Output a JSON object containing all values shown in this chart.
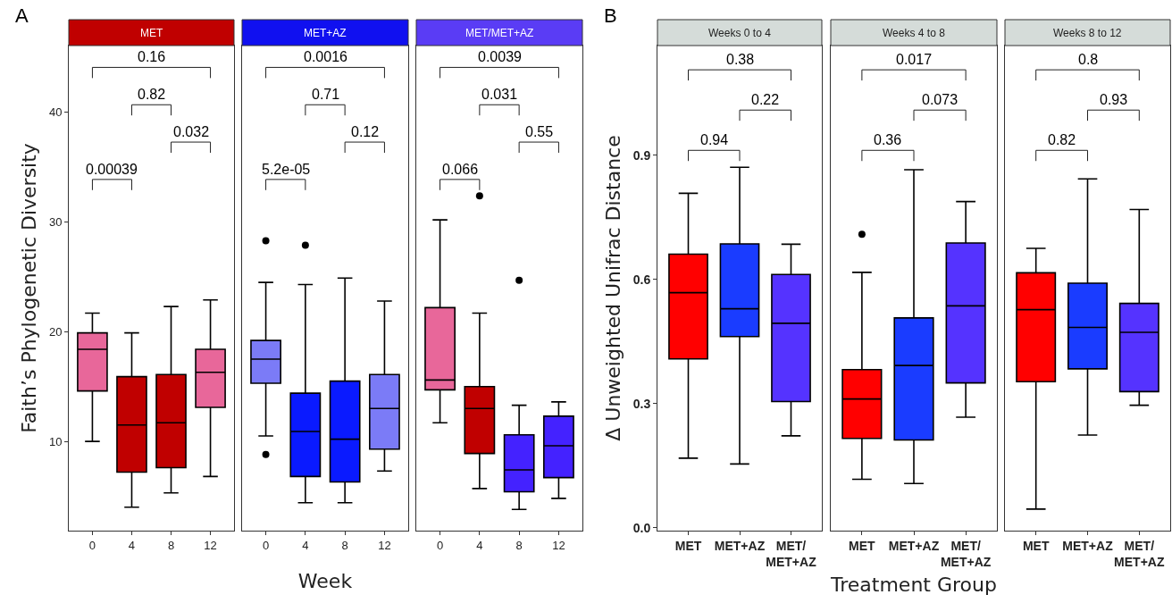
{
  "chart_data": [
    {
      "type": "box",
      "title": "MET",
      "subtitle": "A",
      "ylabel": "Faith’s Phylogenetic Diversity",
      "categories": [
        "0",
        "4",
        "8",
        "12"
      ],
      "ylim": [
        1.86,
        46.1
      ],
      "yticks": [
        10,
        20,
        30,
        40
      ],
      "grid": false,
      "colors": [
        "#e8679a",
        "#c00000",
        "#c00000",
        "#e8679a"
      ],
      "boxes": [
        {
          "low": 10.0,
          "q1": 14.6,
          "median": 18.4,
          "q3": 19.9,
          "high": 21.7
        },
        {
          "low": 4.0,
          "q1": 7.2,
          "median": 11.5,
          "q3": 15.9,
          "high": 19.9
        },
        {
          "low": 5.3,
          "q1": 7.6,
          "median": 11.7,
          "q3": 16.1,
          "high": 22.3
        },
        {
          "low": 6.8,
          "q1": 13.1,
          "median": 16.3,
          "q3": 18.4,
          "high": 22.9
        }
      ],
      "annotations": [
        "0.00039",
        "0.82",
        "0.032",
        "0.16"
      ]
    },
    {
      "type": "box",
      "title": "MET+AZ",
      "xlabel": "Week",
      "categories": [
        "0",
        "4",
        "8",
        "12"
      ],
      "ylim": [
        1.86,
        46.1
      ],
      "grid": false,
      "tick_labels": "x",
      "colors": [
        "#7b7bf7",
        "#0a1aff",
        "#0a1aff",
        "#7b7bf7"
      ],
      "boxes": [
        {
          "low": 10.5,
          "q1": 15.3,
          "median": 17.5,
          "q3": 19.2,
          "high": 24.5,
          "outliers": [
            28.3,
            8.8
          ]
        },
        {
          "low": 4.4,
          "q1": 6.8,
          "median": 10.9,
          "q3": 14.4,
          "high": 24.3,
          "outliers": [
            27.9
          ]
        },
        {
          "low": 4.4,
          "q1": 6.3,
          "median": 10.2,
          "q3": 15.5,
          "high": 24.9
        },
        {
          "low": 7.3,
          "q1": 9.3,
          "median": 13.0,
          "q3": 16.1,
          "high": 22.8
        }
      ],
      "annotations": [
        "5.2e-05",
        "0.71",
        "0.12",
        "0.0016"
      ]
    },
    {
      "type": "box",
      "title": "MET/MET+AZ",
      "categories": [
        "0",
        "4",
        "8",
        "12"
      ],
      "ylim": [
        1.86,
        46.1
      ],
      "grid": false,
      "tick_labels": "x",
      "colors": [
        "#e8679a",
        "#c00000",
        "#4422ff",
        "#4422ff"
      ],
      "boxes": [
        {
          "low": 11.7,
          "q1": 14.7,
          "median": 15.6,
          "q3": 22.2,
          "high": 30.2
        },
        {
          "low": 5.7,
          "q1": 8.9,
          "median": 13.0,
          "q3": 15.0,
          "high": 21.7,
          "outliers": [
            32.4
          ]
        },
        {
          "low": 3.8,
          "q1": 5.4,
          "median": 7.4,
          "q3": 10.6,
          "high": 13.3,
          "outliers": [
            24.7
          ]
        },
        {
          "low": 4.8,
          "q1": 6.7,
          "median": 9.6,
          "q3": 12.3,
          "high": 13.6
        }
      ],
      "annotations": [
        "0.066",
        "0.031",
        "0.55",
        "0.0039"
      ]
    },
    {
      "type": "box",
      "title": "Weeks 0 to 4",
      "subtitle": "B",
      "ylabel": "Δ Unweighted Unifrac Distance",
      "categories": [
        "MET",
        "MET+AZ",
        "MET/MET+AZ"
      ],
      "ylim": [
        -0.007,
        1.165
      ],
      "yticks": [
        {
          "value": 0,
          "label": "0.0"
        },
        {
          "value": 0.3,
          "label": "0.3"
        },
        {
          "value": 0.6,
          "label": "0.6"
        },
        {
          "value": 0.9,
          "label": "0.9"
        }
      ],
      "grid": false,
      "colors": [
        "#ff0000",
        "#1a3cff",
        "#5533ff"
      ],
      "boxes": [
        {
          "low": 0.168,
          "q1": 0.408,
          "median": 0.568,
          "q3": 0.661,
          "high": 0.808
        },
        {
          "low": 0.154,
          "q1": 0.462,
          "median": 0.529,
          "q3": 0.686,
          "high": 0.871
        },
        {
          "low": 0.222,
          "q1": 0.305,
          "median": 0.494,
          "q3": 0.612,
          "high": 0.685
        }
      ],
      "annotations": [
        "0.94",
        "0.22",
        "0.38"
      ]
    },
    {
      "type": "box",
      "title": "Weeks 4 to 8",
      "xlabel": "Treatment Group",
      "categories": [
        "MET",
        "MET+AZ",
        "MET/MET+AZ"
      ],
      "ylim": [
        -0.007,
        1.165
      ],
      "grid": false,
      "tick_labels": "x",
      "colors": [
        "#ff0000",
        "#1a3cff",
        "#5533ff"
      ],
      "boxes": [
        {
          "low": 0.117,
          "q1": 0.216,
          "median": 0.311,
          "q3": 0.382,
          "high": 0.617,
          "outliers": [
            0.709
          ]
        },
        {
          "low": 0.107,
          "q1": 0.212,
          "median": 0.392,
          "q3": 0.507,
          "high": 0.865
        },
        {
          "low": 0.267,
          "q1": 0.35,
          "median": 0.536,
          "q3": 0.688,
          "high": 0.788
        }
      ],
      "annotations": [
        "0.36",
        "0.073",
        "0.017"
      ]
    },
    {
      "type": "box",
      "title": "Weeks 8 to 12",
      "categories": [
        "MET",
        "MET+AZ",
        "MET/MET+AZ"
      ],
      "ylim": [
        -0.007,
        1.165
      ],
      "grid": false,
      "tick_labels": "x",
      "colors": [
        "#ff0000",
        "#1a3cff",
        "#5533ff"
      ],
      "boxes": [
        {
          "low": 0.045,
          "q1": 0.353,
          "median": 0.527,
          "q3": 0.616,
          "high": 0.675
        },
        {
          "low": 0.224,
          "q1": 0.384,
          "median": 0.484,
          "q3": 0.591,
          "high": 0.843
        },
        {
          "low": 0.296,
          "q1": 0.329,
          "median": 0.472,
          "q3": 0.542,
          "high": 0.769
        }
      ],
      "annotations": [
        "0.82",
        "0.93",
        "0.8"
      ]
    }
  ]
}
